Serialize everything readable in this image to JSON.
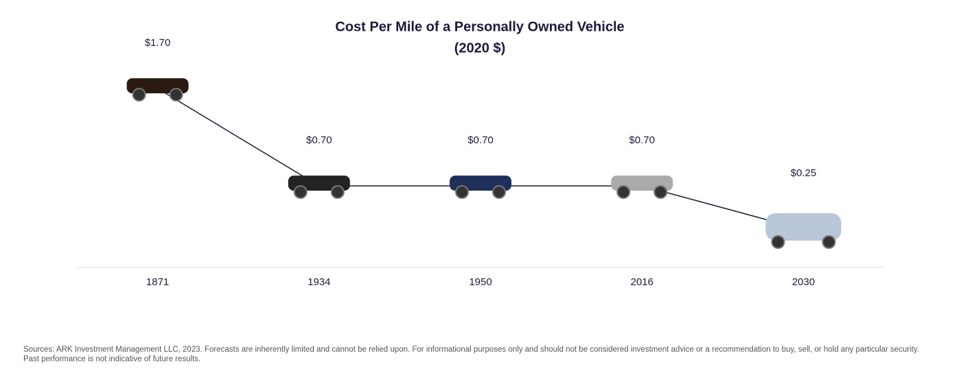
{
  "chart_data": {
    "type": "line",
    "title": "Cost Per Mile of a Personally Owned Vehicle",
    "subtitle": "(2020 $)",
    "categories": [
      "1871",
      "1934",
      "1950",
      "2016",
      "2030"
    ],
    "values": [
      1.7,
      0.7,
      0.7,
      0.7,
      0.25
    ],
    "value_labels": [
      "$1.70",
      "$0.70",
      "$0.70",
      "$0.70",
      "$0.25"
    ],
    "color": "#1c1a3a",
    "note": "Sources: ARK Investment Management LLC, 2023. Forecasts are inherently limited and cannot be relied upon. For informational purposes only and should not be considered investment advice or a recommendation to buy, sell, or hold any particular security. Past performance is not indicative of future results."
  }
}
